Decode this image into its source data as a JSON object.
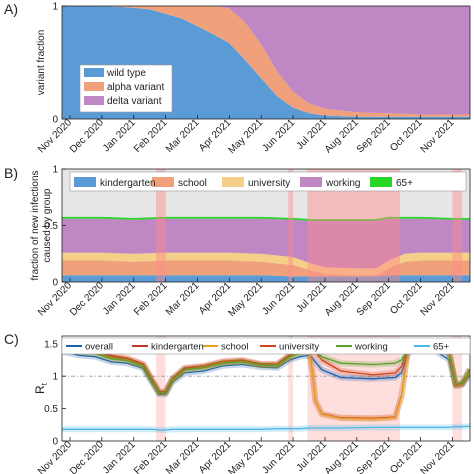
{
  "months": [
    "Nov 2020",
    "Dec 2020",
    "Jan 2021",
    "Feb 2021",
    "Mar 2021",
    "Apr 2021",
    "May 2021",
    "Jun 2021",
    "Jul 2021",
    "Aug 2021",
    "Sep 2021",
    "Oct 2021",
    "Nov 2021"
  ],
  "chart_data": [
    {
      "type": "area",
      "panel_label": "A)",
      "title": "",
      "xlabel": "",
      "ylabel": "variant fraction",
      "ylim": [
        0,
        1
      ],
      "yticks": [
        0,
        1
      ],
      "xlim": [
        -0.25,
        12.55
      ],
      "stacked": true,
      "legend": "bottom-left",
      "x": [
        -0.25,
        0.75,
        1.75,
        2.5,
        3.0,
        3.5,
        4.0,
        4.5,
        5.0,
        5.5,
        6.0,
        6.5,
        7.0,
        7.5,
        8.0,
        9.0,
        10.0,
        11.0,
        12.0,
        12.55
      ],
      "series": [
        {
          "name": "wild type",
          "color": "#5b9bd5",
          "values": [
            1.0,
            1.0,
            0.99,
            0.97,
            0.93,
            0.89,
            0.82,
            0.75,
            0.67,
            0.52,
            0.36,
            0.2,
            0.1,
            0.05,
            0.03,
            0.02,
            0.02,
            0.02,
            0.02,
            0.02
          ]
        },
        {
          "name": "alpha variant",
          "color": "#f0a07a",
          "values": [
            0.0,
            0.0,
            0.01,
            0.03,
            0.07,
            0.11,
            0.18,
            0.25,
            0.31,
            0.33,
            0.3,
            0.22,
            0.14,
            0.09,
            0.06,
            0.04,
            0.03,
            0.02,
            0.02,
            0.02
          ]
        },
        {
          "name": "delta variant",
          "color": "#bf88c5",
          "values": [
            0.0,
            0.0,
            0.0,
            0.0,
            0.0,
            0.0,
            0.0,
            0.0,
            0.02,
            0.15,
            0.34,
            0.58,
            0.76,
            0.86,
            0.91,
            0.94,
            0.95,
            0.96,
            0.96,
            0.96
          ]
        }
      ]
    },
    {
      "type": "area",
      "panel_label": "B)",
      "title": "",
      "xlabel": "",
      "ylabel": "fraction of new infections caused by group",
      "ylim": [
        0,
        1
      ],
      "yticks": [
        0,
        0.5,
        1
      ],
      "xlim": [
        -0.25,
        12.55
      ],
      "stacked": true,
      "legend": "top",
      "x": [
        -0.25,
        1.0,
        2.0,
        3.0,
        4.0,
        5.0,
        6.0,
        7.0,
        7.6,
        8.0,
        9.0,
        9.6,
        10.0,
        10.5,
        11.0,
        12.0,
        12.55
      ],
      "series": [
        {
          "name": "kindergarten",
          "color": "#5b9bd5",
          "values": [
            0.06,
            0.06,
            0.06,
            0.06,
            0.06,
            0.06,
            0.06,
            0.05,
            0.05,
            0.05,
            0.05,
            0.05,
            0.06,
            0.06,
            0.06,
            0.06,
            0.06
          ]
        },
        {
          "name": "school",
          "color": "#f0a07a",
          "values": [
            0.13,
            0.13,
            0.12,
            0.13,
            0.13,
            0.13,
            0.12,
            0.1,
            0.05,
            0.02,
            0.01,
            0.01,
            0.06,
            0.12,
            0.13,
            0.13,
            0.13
          ]
        },
        {
          "name": "university",
          "color": "#f5cf88",
          "values": [
            0.07,
            0.07,
            0.07,
            0.07,
            0.07,
            0.07,
            0.07,
            0.07,
            0.06,
            0.06,
            0.06,
            0.06,
            0.07,
            0.07,
            0.07,
            0.07,
            0.07
          ]
        },
        {
          "name": "working",
          "color": "#bf88c5",
          "values": [
            0.3,
            0.3,
            0.3,
            0.3,
            0.3,
            0.3,
            0.31,
            0.33,
            0.38,
            0.41,
            0.42,
            0.42,
            0.37,
            0.31,
            0.3,
            0.29,
            0.29
          ]
        },
        {
          "name": "65+",
          "color": "#28d628",
          "values": [
            0.01,
            0.01,
            0.01,
            0.01,
            0.01,
            0.01,
            0.01,
            0.01,
            0.01,
            0.01,
            0.01,
            0.01,
            0.01,
            0.01,
            0.01,
            0.01,
            0.01
          ]
        }
      ],
      "shaded_periods": [
        [
          2.7,
          3.0
        ],
        [
          6.85,
          7.0
        ],
        [
          7.45,
          10.35
        ],
        [
          12.0,
          12.3
        ]
      ]
    },
    {
      "type": "line",
      "panel_label": "C)",
      "title": "",
      "xlabel": "",
      "ylabel": "R",
      "ylabel_subscript": "t",
      "ylim": [
        0,
        1.62
      ],
      "yticks": [
        0,
        0.5,
        1,
        1.5
      ],
      "xlim": [
        -0.25,
        12.55
      ],
      "reference_line": 1,
      "legend": "top",
      "x": [
        -0.25,
        0.3,
        0.8,
        1.3,
        1.8,
        2.3,
        2.6,
        2.8,
        3.0,
        3.2,
        3.6,
        4.2,
        4.8,
        5.4,
        6.0,
        6.5,
        6.9,
        7.2,
        7.5,
        7.6,
        7.7,
        7.9,
        8.5,
        9.5,
        10.2,
        10.4,
        10.6,
        11.0,
        11.5,
        11.9,
        12.1,
        12.3,
        12.55
      ],
      "series": [
        {
          "name": "overall",
          "color": "#1f5fb0",
          "values": [
            1.38,
            1.32,
            1.3,
            1.22,
            1.2,
            1.12,
            0.88,
            0.72,
            0.72,
            0.9,
            1.05,
            1.08,
            1.16,
            1.18,
            1.14,
            1.13,
            1.25,
            1.3,
            1.32,
            1.28,
            1.22,
            1.1,
            0.98,
            0.96,
            0.98,
            1.05,
            1.35,
            1.45,
            1.38,
            1.25,
            0.85,
            0.86,
            1.02
          ]
        },
        {
          "name": "kindergarten",
          "color": "#c03a2b",
          "values": [
            1.48,
            1.4,
            1.38,
            1.3,
            1.26,
            1.18,
            0.92,
            0.75,
            0.76,
            0.95,
            1.12,
            1.15,
            1.22,
            1.24,
            1.18,
            1.18,
            1.32,
            1.38,
            1.4,
            1.08,
            0.62,
            0.42,
            0.36,
            0.35,
            0.37,
            0.7,
            1.4,
            1.52,
            1.48,
            1.35,
            0.86,
            0.88,
            1.1
          ]
        },
        {
          "name": "school",
          "color": "#e8a020",
          "values": [
            1.45,
            1.38,
            1.36,
            1.28,
            1.25,
            1.16,
            0.9,
            0.74,
            0.74,
            0.93,
            1.1,
            1.14,
            1.21,
            1.23,
            1.17,
            1.17,
            1.3,
            1.36,
            1.38,
            1.07,
            0.62,
            0.41,
            0.35,
            0.34,
            0.36,
            0.68,
            1.38,
            1.5,
            1.46,
            1.33,
            0.85,
            0.87,
            1.08
          ]
        },
        {
          "name": "university",
          "color": "#d2441a",
          "values": [
            1.5,
            1.42,
            1.4,
            1.32,
            1.28,
            1.19,
            0.93,
            0.76,
            0.76,
            0.96,
            1.13,
            1.16,
            1.23,
            1.25,
            1.19,
            1.19,
            1.33,
            1.42,
            1.44,
            1.42,
            1.38,
            1.25,
            1.08,
            1.02,
            1.05,
            1.15,
            1.42,
            1.55,
            1.5,
            1.37,
            0.87,
            0.89,
            1.11
          ]
        },
        {
          "name": "working",
          "color": "#5aa02c",
          "values": [
            1.44,
            1.37,
            1.35,
            1.27,
            1.24,
            1.15,
            0.9,
            0.74,
            0.74,
            0.94,
            1.1,
            1.13,
            1.2,
            1.22,
            1.17,
            1.16,
            1.3,
            1.36,
            1.4,
            1.4,
            1.38,
            1.3,
            1.2,
            1.18,
            1.2,
            1.25,
            1.4,
            1.52,
            1.47,
            1.35,
            0.88,
            0.9,
            1.1
          ]
        },
        {
          "name": "65+",
          "color": "#4cb8e6",
          "values": [
            0.18,
            0.18,
            0.18,
            0.18,
            0.18,
            0.18,
            0.18,
            0.17,
            0.17,
            0.18,
            0.18,
            0.18,
            0.18,
            0.18,
            0.18,
            0.19,
            0.19,
            0.19,
            0.2,
            0.2,
            0.2,
            0.2,
            0.2,
            0.21,
            0.21,
            0.21,
            0.21,
            0.21,
            0.21,
            0.21,
            0.22,
            0.22,
            0.23
          ]
        }
      ],
      "shaded_periods": [
        [
          2.7,
          3.0
        ],
        [
          6.85,
          7.0
        ],
        [
          7.45,
          10.35
        ],
        [
          12.0,
          12.3
        ]
      ]
    }
  ]
}
